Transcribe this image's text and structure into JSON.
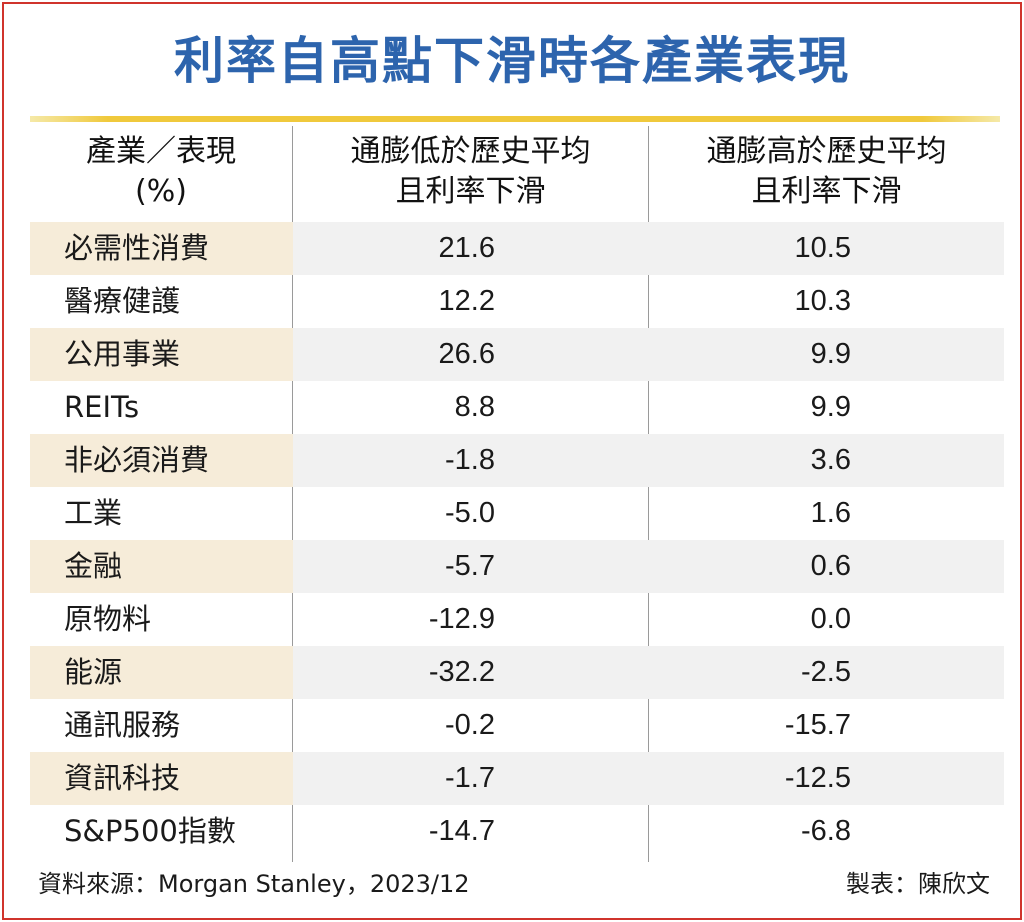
{
  "chart_data": {
    "type": "table",
    "title": "利率自高點下滑時各產業表現",
    "columns": [
      {
        "lines": [
          "產業／表現",
          "(%)"
        ]
      },
      {
        "lines": [
          "通膨低於歷史平均",
          "且利率下滑"
        ]
      },
      {
        "lines": [
          "通膨高於歷史平均",
          "且利率下滑"
        ]
      }
    ],
    "rows": [
      {
        "sector": "必需性消費",
        "low_inflation": "21.6",
        "high_inflation": "10.5"
      },
      {
        "sector": "醫療健護",
        "low_inflation": "12.2",
        "high_inflation": "10.3"
      },
      {
        "sector": "公用事業",
        "low_inflation": "26.6",
        "high_inflation": "9.9"
      },
      {
        "sector": "REITs",
        "low_inflation": "8.8",
        "high_inflation": "9.9"
      },
      {
        "sector": "非必須消費",
        "low_inflation": "-1.8",
        "high_inflation": "3.6"
      },
      {
        "sector": "工業",
        "low_inflation": "-5.0",
        "high_inflation": "1.6"
      },
      {
        "sector": "金融",
        "low_inflation": "-5.7",
        "high_inflation": "0.6"
      },
      {
        "sector": "原物料",
        "low_inflation": "-12.9",
        "high_inflation": "0.0"
      },
      {
        "sector": "能源",
        "low_inflation": "-32.2",
        "high_inflation": "-2.5"
      },
      {
        "sector": "通訊服務",
        "low_inflation": "-0.2",
        "high_inflation": "-15.7"
      },
      {
        "sector": "資訊科技",
        "low_inflation": "-1.7",
        "high_inflation": "-12.5"
      },
      {
        "sector": "S&P500指數",
        "low_inflation": "-14.7",
        "high_inflation": "-6.8"
      }
    ],
    "source": "資料來源：Morgan Stanley，2023/12",
    "credit": "製表：陳欣文"
  },
  "colors": {
    "title": "#2d64ad",
    "border": "#d0342c",
    "rule": "#f0c93c",
    "row_shade": "#f6ecd9"
  }
}
